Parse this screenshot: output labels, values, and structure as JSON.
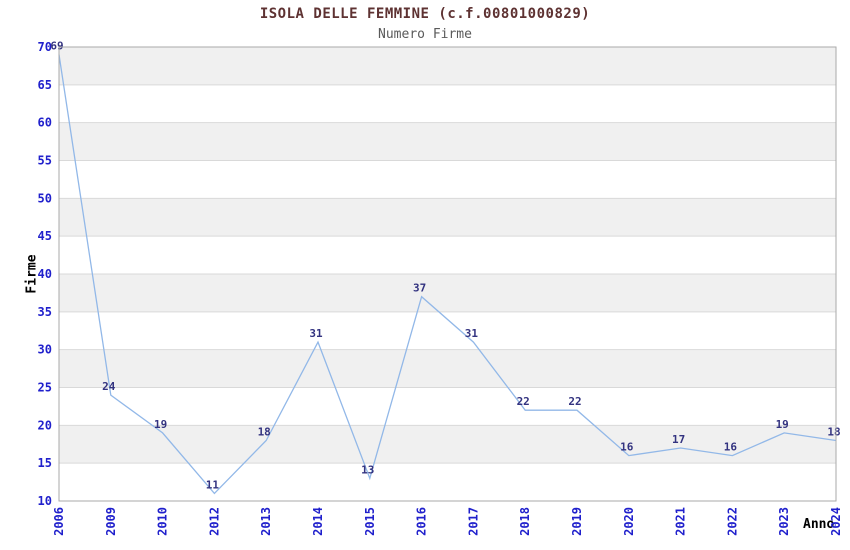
{
  "chart_data": {
    "type": "line",
    "title": "ISOLA DELLE FEMMINE (c.f.00801000829)",
    "subtitle": "Numero Firme",
    "xlabel": "Anno",
    "ylabel": "Firme",
    "categories": [
      "2006",
      "2009",
      "2010",
      "2012",
      "2013",
      "2014",
      "2015",
      "2016",
      "2017",
      "2018",
      "2019",
      "2020",
      "2021",
      "2022",
      "2023",
      "2024"
    ],
    "series": [
      {
        "name": "Numero Firme",
        "values": [
          69,
          24,
          19,
          11,
          18,
          31,
          13,
          37,
          31,
          22,
          22,
          16,
          17,
          16,
          19,
          18
        ]
      }
    ],
    "point_labels": [
      "69",
      "24",
      "19",
      "11",
      "18",
      "31",
      "13",
      "37",
      "31",
      "22",
      "22",
      "16",
      "17",
      "16",
      "19",
      "18"
    ],
    "ylim": [
      10,
      70
    ],
    "yticks": [
      10,
      15,
      20,
      25,
      30,
      35,
      40,
      45,
      50,
      55,
      60,
      65,
      70
    ],
    "grid": "alternating-horizontal-bands",
    "gray_bands": [
      [
        15,
        20
      ],
      [
        25,
        30
      ],
      [
        35,
        40
      ],
      [
        45,
        50
      ],
      [
        55,
        60
      ],
      [
        65,
        70
      ]
    ],
    "legend_position": "none",
    "colors": {
      "line": "#92b8e8",
      "tick_label": "#2020cc",
      "point_label": "#333380",
      "band": "#f0f0f0",
      "gridline": "#d9d9d9",
      "border": "#aaaaaa",
      "title": "#5e3232",
      "subtitle": "#5a5a5a",
      "axis_title": "#000000",
      "background": "#ffffff"
    }
  }
}
